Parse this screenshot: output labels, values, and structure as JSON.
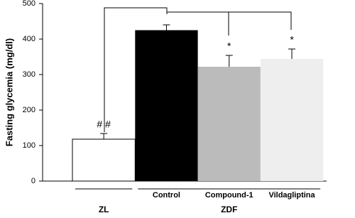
{
  "chart_data": {
    "type": "bar",
    "y_label": "Fasting glycemia (mg/dl)",
    "categories": [
      null,
      "Control",
      "Compound-1",
      "Vildagliptina"
    ],
    "values": [
      118,
      425,
      322,
      344
    ],
    "errors": [
      16,
      15,
      32,
      28
    ],
    "colors": [
      "#ffffff",
      "#000000",
      "#bbbbbb",
      "#eeeeee"
    ],
    "annotations": [
      "# #",
      null,
      "*",
      "*"
    ],
    "groups": [
      {
        "label": "ZL",
        "start": 0,
        "end": 0
      },
      {
        "label": "ZDF",
        "start": 1,
        "end": 3
      }
    ],
    "ylim": [
      0,
      500
    ],
    "yticks": [
      0,
      100,
      200,
      300,
      400,
      500
    ]
  }
}
